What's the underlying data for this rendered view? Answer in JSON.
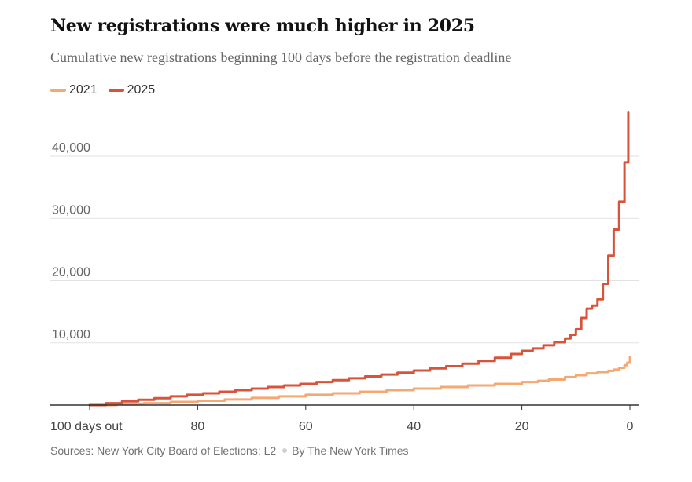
{
  "title": "New registrations were much higher in 2025",
  "subtitle": "Cumulative new registrations beginning 100 days before the registration deadline",
  "source": "Sources: New York City Board of Elections; L2",
  "byline": "By The New York Times",
  "colors": {
    "s2021": "#f4a974",
    "s2025": "#d9533a"
  },
  "chart_data": {
    "type": "line",
    "step": true,
    "xlabel": "",
    "ylabel": "",
    "xlim": [
      100,
      0
    ],
    "ylim": [
      0,
      47000
    ],
    "grid": true,
    "legend": "top-left",
    "y_ticks": [
      10000,
      20000,
      30000,
      40000
    ],
    "y_tick_labels": [
      "10,000",
      "20,000",
      "30,000",
      "40,000"
    ],
    "x_ticks": [
      100,
      80,
      60,
      40,
      20,
      0
    ],
    "x_tick_labels": [
      "100 days out",
      "80",
      "60",
      "40",
      "20",
      "0"
    ],
    "series": [
      {
        "name": "2021",
        "x": [
          100,
          95,
          90,
          85,
          80,
          75,
          70,
          65,
          60,
          55,
          50,
          45,
          40,
          35,
          30,
          25,
          20,
          17,
          15,
          12,
          10,
          8,
          6,
          4,
          3,
          2,
          1,
          0.5,
          0
        ],
        "y": [
          0,
          150,
          300,
          500,
          700,
          900,
          1150,
          1400,
          1650,
          1900,
          2150,
          2400,
          2650,
          2900,
          3150,
          3400,
          3700,
          3900,
          4100,
          4500,
          4800,
          5100,
          5300,
          5500,
          5700,
          6000,
          6400,
          6800,
          7700
        ]
      },
      {
        "name": "2025",
        "x": [
          100,
          97,
          94,
          91,
          88,
          85,
          82,
          79,
          76,
          73,
          70,
          67,
          64,
          61,
          58,
          55,
          52,
          49,
          46,
          43,
          40,
          37,
          34,
          31,
          28,
          25,
          22,
          20,
          18,
          16,
          14,
          12,
          11,
          10,
          9,
          8,
          7,
          6,
          5,
          4,
          3,
          2,
          1,
          0.3
        ],
        "y": [
          0,
          300,
          600,
          850,
          1100,
          1400,
          1650,
          1900,
          2150,
          2400,
          2650,
          2900,
          3150,
          3400,
          3700,
          4000,
          4300,
          4600,
          4900,
          5200,
          5550,
          5900,
          6250,
          6650,
          7100,
          7600,
          8200,
          8700,
          9100,
          9600,
          10100,
          10700,
          11300,
          12200,
          14000,
          15500,
          16000,
          17000,
          19500,
          24000,
          28200,
          32700,
          39000,
          47000
        ]
      }
    ]
  }
}
